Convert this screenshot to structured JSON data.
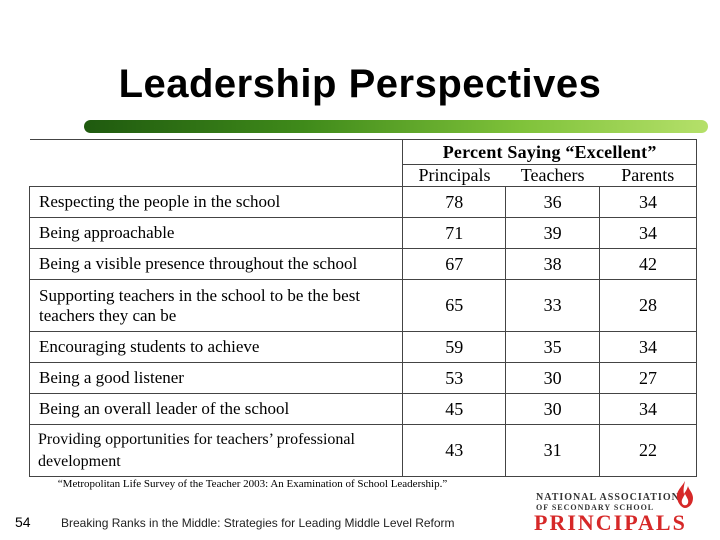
{
  "slide": {
    "title": "Leadership Perspectives",
    "citation": "“Metropolitan Life Survey of the Teacher 2003:  An Examination of School Leadership.”",
    "number": "54",
    "footer": "Breaking Ranks in the Middle: Strategies for Leading Middle Level Reform"
  },
  "table": {
    "group_header": "Percent Saying “Excellent”",
    "columns": [
      "Principals",
      "Teachers",
      "Parents"
    ],
    "rows": [
      {
        "label": "Respecting the people in the school",
        "values": [
          "78",
          "36",
          "34"
        ]
      },
      {
        "label": "Being approachable",
        "values": [
          "71",
          "39",
          "34"
        ]
      },
      {
        "label": "Being a visible presence throughout the school",
        "values": [
          "67",
          "38",
          "42"
        ]
      },
      {
        "label": "Supporting teachers in the school to be the best teachers they can be",
        "values": [
          "65",
          "33",
          "28"
        ]
      },
      {
        "label": "Encouraging students to achieve",
        "values": [
          "59",
          "35",
          "34"
        ]
      },
      {
        "label": "Being a good listener",
        "values": [
          "53",
          "30",
          "27"
        ]
      },
      {
        "label": "Being an overall leader of the school",
        "values": [
          "45",
          "30",
          "34"
        ]
      },
      {
        "label": "Providing opportunities for teachers’ professional development",
        "values": [
          "43",
          "31",
          "22"
        ]
      }
    ]
  },
  "logo": {
    "line1": "NATIONAL ASSOCIATION",
    "line2": "OF SECONDARY SCHOOL",
    "line3": "PRINCIPALS",
    "icon": "flame-icon",
    "accent_color": "#d62828"
  },
  "colors": {
    "title_bar_dark": "#1f5a0f",
    "title_bar_light": "#b5e06a"
  }
}
